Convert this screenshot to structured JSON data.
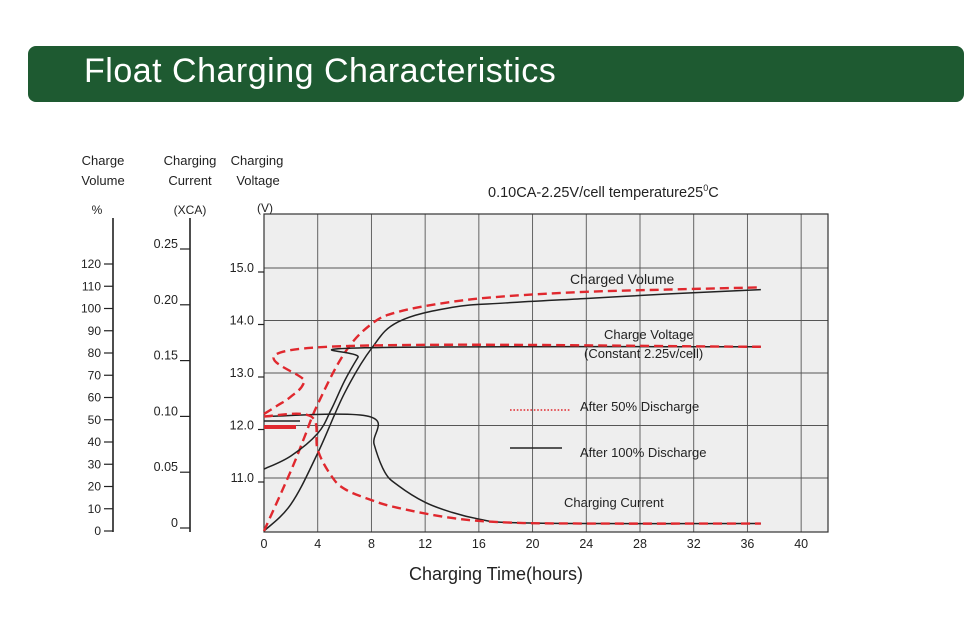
{
  "banner": {
    "title": "Float Charging Characteristics"
  },
  "chart_data": {
    "type": "line",
    "condition": "0.10CA-2.25V/cell  temperature25",
    "condition_sup": "0",
    "condition_unit": "C",
    "axes": {
      "volume": {
        "label_line1": "Charge",
        "label_line2": "Volume",
        "unit": "%",
        "ticks": [
          0,
          10,
          20,
          30,
          40,
          50,
          60,
          70,
          80,
          90,
          100,
          110,
          120
        ]
      },
      "current": {
        "label_line1": "Charging",
        "label_line2": "Current",
        "unit": "(XCA)",
        "ticks": [
          "0",
          "0.05",
          "0.10",
          "0.15",
          "0.20",
          "0.25"
        ]
      },
      "voltage": {
        "label_line1": "Charging",
        "label_line2": "Voltage",
        "unit": "(V)",
        "ticks": [
          "11.0",
          "12.0",
          "13.0",
          "14.0",
          "15.0"
        ]
      },
      "x": {
        "label": "Charging Time(hours)",
        "ticks": [
          0,
          4,
          8,
          12,
          16,
          20,
          24,
          28,
          32,
          36,
          40
        ],
        "range": [
          0,
          42
        ]
      }
    },
    "annotations": {
      "charged_volume": "Charged Volume",
      "charge_voltage": "Charge Voltage",
      "charge_voltage_sub": "(Constant 2.25v/cell)",
      "charging_current": "Charging Current"
    },
    "legend": [
      {
        "label": "After 50% Discharge",
        "style": "dotted",
        "color": "#e0282e"
      },
      {
        "label": "After 100% Discharge",
        "style": "solid",
        "color": "#222222"
      }
    ],
    "grid": true,
    "series": [
      {
        "curve": "charged_volume",
        "style": "solid",
        "axis": "volume",
        "x": [
          0,
          2,
          4,
          6,
          8,
          10,
          14,
          18,
          24,
          30,
          37
        ],
        "y": [
          0,
          12,
          35,
          62,
          82,
          94,
          100.5,
          102.5,
          104.5,
          106.5,
          108.5
        ]
      },
      {
        "curve": "charged_volume",
        "style": "dashed",
        "axis": "volume",
        "x": [
          0,
          2,
          3,
          4,
          6,
          8,
          10,
          14,
          18,
          24,
          30,
          37
        ],
        "y": [
          0,
          27,
          42,
          57,
          80,
          93,
          98.5,
          103,
          105.5,
          107.5,
          108.5,
          109.5
        ]
      },
      {
        "curve": "charge_voltage",
        "style": "solid",
        "axis": "voltage",
        "x": [
          0,
          2,
          4,
          5,
          6,
          7,
          7.5,
          37
        ],
        "y": [
          11.17,
          11.42,
          11.85,
          12.3,
          12.85,
          13.3,
          13.48,
          13.5
        ]
      },
      {
        "curve": "charge_voltage",
        "style": "dashed",
        "axis": "voltage",
        "x": [
          0,
          1,
          2,
          3,
          3.5,
          37
        ],
        "y": [
          12.22,
          12.38,
          12.55,
          12.83,
          13.48,
          13.5
        ]
      },
      {
        "curve": "charging_current",
        "style": "solid",
        "axis": "current",
        "x": [
          0,
          7.8,
          8.2,
          9,
          10,
          12,
          14,
          16,
          18,
          24,
          37
        ],
        "y": [
          0.1,
          0.1,
          0.075,
          0.05,
          0.038,
          0.023,
          0.014,
          0.008,
          0.005,
          0.004,
          0.004
        ]
      },
      {
        "curve": "charging_current",
        "style": "dashed",
        "axis": "current",
        "x": [
          0,
          3.5,
          4,
          5,
          6,
          8,
          10,
          14,
          18,
          24,
          37
        ],
        "y": [
          0.1,
          0.1,
          0.07,
          0.047,
          0.035,
          0.025,
          0.018,
          0.009,
          0.005,
          0.004,
          0.004
        ]
      }
    ]
  }
}
